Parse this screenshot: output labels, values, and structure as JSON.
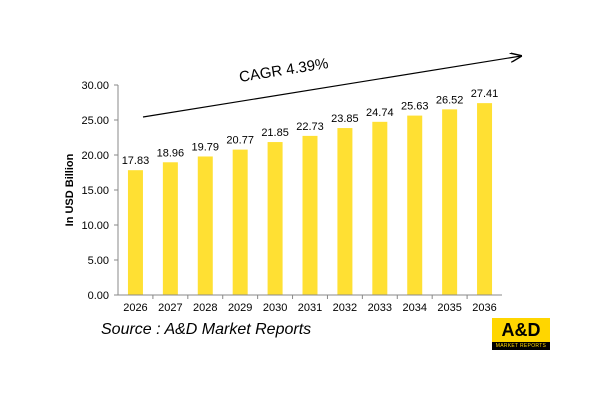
{
  "chart_data": {
    "type": "bar",
    "categories": [
      "2026",
      "2027",
      "2028",
      "2029",
      "2030",
      "2031",
      "2032",
      "2033",
      "2034",
      "2035",
      "2036"
    ],
    "values": [
      17.83,
      18.96,
      19.79,
      20.77,
      21.85,
      22.73,
      23.85,
      24.74,
      25.63,
      26.52,
      27.41
    ],
    "data_labels": [
      "17.83",
      "18.96",
      "19.79",
      "20.77",
      "21.85",
      "22.73",
      "23.85",
      "24.74",
      "25.63",
      "26.52",
      "27.41"
    ],
    "ylabel": "In USD Billion",
    "xlabel": "",
    "ylim": [
      0,
      30
    ],
    "yticks": [
      "0.00",
      "5.00",
      "10.00",
      "15.00",
      "20.00",
      "25.00",
      "30.00"
    ],
    "annotation": "CAGR 4.39%",
    "grid": false,
    "bar_color": "#ffe033"
  },
  "footer": {
    "source": "Source : A&D Market Reports"
  },
  "logo": {
    "main": "A&D",
    "sub": "MARKET REPORTS"
  }
}
